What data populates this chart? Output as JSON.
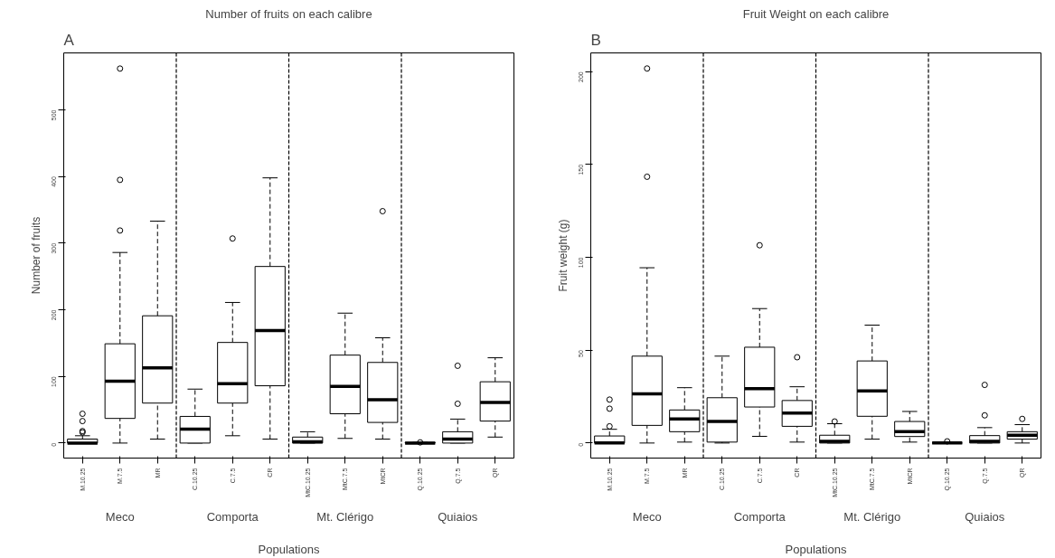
{
  "chart_data": [
    {
      "type": "box",
      "title": "Number of fruits on each calibre",
      "xlabel": "Populations",
      "ylabel": "Number of fruits",
      "categories": [
        "M.10.25",
        "M.7.5",
        "MR",
        "C.10.25",
        "C.7.5",
        "CR",
        "MtC.10.25",
        "MtC.7.5",
        "MtCR",
        "Q.10.25",
        "Q.7.5",
        "QR"
      ],
      "boxes": [
        {
          "low": 0,
          "q1": 0,
          "median": 0,
          "q3": 6,
          "high": 11,
          "outliers": [
            16,
            18,
            33,
            44
          ]
        },
        {
          "low": 0,
          "q1": 37,
          "median": 93,
          "q3": 149,
          "high": 286,
          "outliers": [
            319,
            395,
            562
          ]
        },
        {
          "low": 6,
          "q1": 60,
          "median": 113,
          "q3": 191,
          "high": 333
        },
        {
          "low": 0,
          "q1": 0,
          "median": 21,
          "q3": 40,
          "high": 81
        },
        {
          "low": 11,
          "q1": 60,
          "median": 89,
          "q3": 151,
          "high": 211,
          "outliers": [
            307
          ]
        },
        {
          "low": 6,
          "q1": 86,
          "median": 169,
          "q3": 265,
          "high": 398
        },
        {
          "low": 0,
          "q1": 0,
          "median": 2,
          "q3": 9,
          "high": 17
        },
        {
          "low": 7,
          "q1": 44,
          "median": 85,
          "q3": 132,
          "high": 195
        },
        {
          "low": 6,
          "q1": 31,
          "median": 65,
          "q3": 121,
          "high": 158,
          "outliers": [
            348
          ]
        },
        {
          "low": 0,
          "q1": 0,
          "median": 0,
          "q3": 1,
          "high": 1,
          "outliers": [
            1
          ]
        },
        {
          "low": 0,
          "q1": 0,
          "median": 6,
          "q3": 17,
          "high": 36,
          "outliers": [
            59,
            116
          ]
        },
        {
          "low": 9,
          "q1": 33,
          "median": 61,
          "q3": 92,
          "high": 128
        }
      ],
      "ylim": [
        -22.5,
        585.5
      ],
      "yticks": [
        0,
        100,
        200,
        300,
        400,
        500
      ],
      "grid": false,
      "annotations": [
        "A",
        "Meco",
        "Comporta",
        "Mt. Clérigo",
        "Quiaios"
      ]
    },
    {
      "type": "box",
      "title": "Fruit Weight on each calibre",
      "xlabel": "Populations",
      "ylabel": "Fruit weight (g)",
      "categories": [
        "M.10.25",
        "M.7.5",
        "MR",
        "C.10.25",
        "C.7.5",
        "CR",
        "MtC.10.25",
        "MtC.7.5",
        "MtCR",
        "Q.10.25",
        "Q.7.5",
        "QR"
      ],
      "boxes": [
        {
          "low": 0,
          "q1": 0,
          "median": 0,
          "q3": 3.8,
          "high": 7.4,
          "outliers": [
            9,
            18.5,
            23.4
          ]
        },
        {
          "low": 0,
          "q1": 9.5,
          "median": 26.5,
          "q3": 46.8,
          "high": 94.4,
          "outliers": [
            143.4,
            201.7
          ]
        },
        {
          "low": 0.5,
          "q1": 6.1,
          "median": 13,
          "q3": 17.8,
          "high": 29.8
        },
        {
          "low": 0,
          "q1": 0.5,
          "median": 11.6,
          "q3": 24.4,
          "high": 46.8
        },
        {
          "low": 3.6,
          "q1": 19.4,
          "median": 29.3,
          "q3": 51.6,
          "high": 72.4,
          "outliers": [
            106.5
          ]
        },
        {
          "low": 0.5,
          "q1": 9,
          "median": 16.1,
          "q3": 22.9,
          "high": 30.3,
          "outliers": [
            46.2
          ]
        },
        {
          "low": 0,
          "q1": 0,
          "median": 0.9,
          "q3": 4.2,
          "high": 10.4,
          "outliers": [
            11.6
          ]
        },
        {
          "low": 2.1,
          "q1": 14.4,
          "median": 28.1,
          "q3": 44.2,
          "high": 63.5
        },
        {
          "low": 0.5,
          "q1": 3.5,
          "median": 6.1,
          "q3": 11.6,
          "high": 17
        },
        {
          "low": 0,
          "q1": 0,
          "median": 0,
          "q3": 0,
          "high": 0,
          "outliers": [
            0.9
          ]
        },
        {
          "low": 0,
          "q1": 0,
          "median": 0.9,
          "q3": 4,
          "high": 8.3,
          "outliers": [
            14.9,
            31.3
          ]
        },
        {
          "low": 0,
          "q1": 2.1,
          "median": 4.2,
          "q3": 6.1,
          "high": 9.9,
          "outliers": [
            13
          ]
        }
      ],
      "ylim": [
        -8.1,
        210.1
      ],
      "yticks": [
        0,
        50,
        100,
        150,
        200
      ],
      "grid": false,
      "annotations": [
        "B",
        "Meco",
        "Comporta",
        "Mt. Clérigo",
        "Quiaios"
      ]
    }
  ]
}
